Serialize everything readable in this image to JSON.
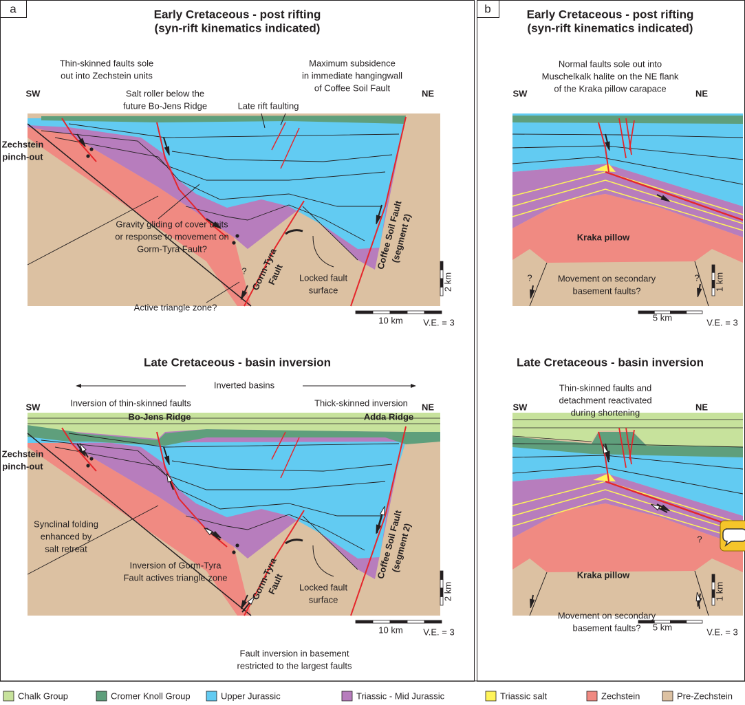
{
  "panel_a": {
    "letter": "a",
    "early": {
      "title": "Early Cretaceous - post rifting",
      "subtitle": "(syn-rift kinematics indicated)",
      "sw": "SW",
      "ne": "NE",
      "notes": [
        [
          "Thin-skinned faults sole",
          "out into Zechstein units"
        ],
        [
          "Salt roller below the",
          "future Bo-Jens Ridge"
        ],
        [
          "Maximum subsidence",
          "in immediate hangingwall",
          "of Coffee Soil Fault"
        ],
        [
          "Late rift faulting"
        ],
        [
          "Zechstein",
          "pinch-out"
        ],
        [
          "Gravity gliding of cover units",
          "or response to movement on",
          "Gorm-Tyra Fault?"
        ],
        [
          "?"
        ],
        [
          "Gorm-Tyra",
          "Fault"
        ],
        [
          "Locked fault",
          "surface"
        ],
        [
          "Coffee Soil Fault",
          "(segment 2)"
        ],
        [
          "Active triangle zone?"
        ]
      ],
      "scale": {
        "vertical": "2 km",
        "horizontal": "10 km",
        "ve": "V.E. = 3"
      }
    },
    "late": {
      "title": "Late Cretaceous - basin inversion",
      "sw": "SW",
      "ne": "NE",
      "notes": [
        [
          "Inverted basins"
        ],
        [
          "Inversion of thin-skinned faults"
        ],
        [
          "Thick-skinned inversion"
        ],
        [
          "Bo-Jens Ridge"
        ],
        [
          "Adda Ridge"
        ],
        [
          "Zechstein",
          "pinch-out"
        ],
        [
          "Synclinal folding",
          "enhanced by",
          "salt retreat"
        ],
        [
          "Inversion of Gorm-Tyra",
          "Fault actives triangle zone"
        ],
        [
          "Gorm-Tyra",
          "Fault"
        ],
        [
          "Locked fault",
          "surface"
        ],
        [
          "Coffee Soil Fault",
          "(segment 2)"
        ],
        [
          "Fault inversion in basement",
          "restricted to the largest faults"
        ]
      ],
      "scale": {
        "vertical": "2 km",
        "horizontal": "10 km",
        "ve": "V.E. = 3"
      }
    }
  },
  "panel_b": {
    "letter": "b",
    "early": {
      "title": "Early Cretaceous - post rifting",
      "subtitle": "(syn-rift kinematics indicated)",
      "sw": "SW",
      "ne": "NE",
      "notes": [
        [
          "Normal faults sole out into",
          "Muschelkalk halite on the NE flank",
          "of the Kraka pillow carapace"
        ],
        [
          "Kraka pillow"
        ],
        [
          "?"
        ],
        [
          "?"
        ],
        [
          "Movement on secondary",
          "basement faults?"
        ]
      ],
      "scale": {
        "vertical": "1 km",
        "horizontal": "5 km",
        "ve": "V.E. = 3"
      }
    },
    "late": {
      "title": "Late Cretaceous - basin inversion",
      "sw": "SW",
      "ne": "NE",
      "notes": [
        [
          "Thin-skinned faults and",
          "detachment reactivated",
          "during shortening"
        ],
        [
          "Kraka pillow"
        ],
        [
          "?"
        ],
        [
          "Movement on secondary",
          "basement faults?"
        ]
      ],
      "scale": {
        "vertical": "1 km",
        "horizontal": "5 km",
        "ve": "V.E. = 3"
      }
    }
  },
  "legend": [
    {
      "label": "Chalk Group",
      "color": "#c7e29c"
    },
    {
      "label": "Cromer Knoll Group",
      "color": "#5f9f7c"
    },
    {
      "label": "Upper Jurassic",
      "color": "#62cbf2"
    },
    {
      "label": "Triassic - Mid Jurassic",
      "color": "#b77dbd"
    },
    {
      "label": "Triassic salt",
      "color": "#fff45a"
    },
    {
      "label": "Zechstein",
      "color": "#f08a82"
    },
    {
      "label": "Pre-Zechstein",
      "color": "#dcc1a2"
    }
  ]
}
